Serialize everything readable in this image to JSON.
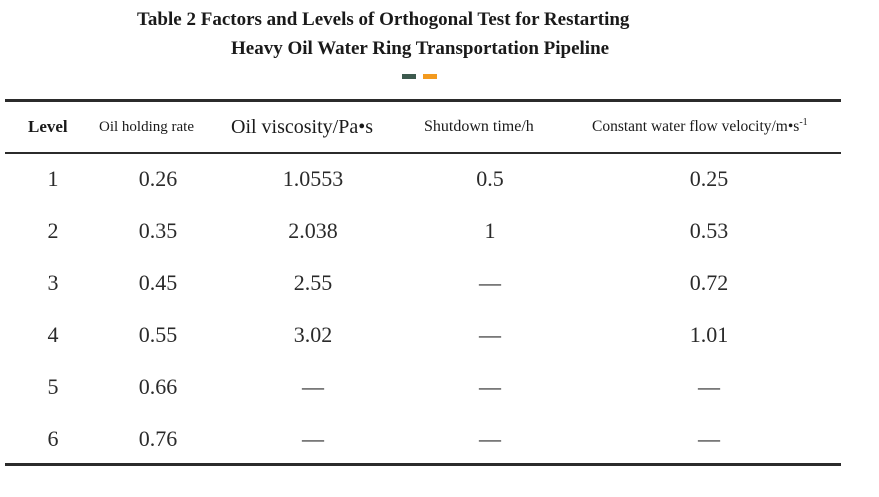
{
  "title": {
    "line1": "Table 2 Factors and Levels of Orthogonal Test for Restarting",
    "line2": "Heavy Oil Water Ring Transportation Pipeline"
  },
  "accent_colors": [
    "#3d5a4e",
    "#f39a1e"
  ],
  "columns": {
    "level": "Level",
    "oil_holding_rate": "Oil holding rate",
    "oil_viscosity": "Oil viscosity/Pa•s",
    "shutdown_time": "Shutdown time/h",
    "water_velocity": "Constant water flow velocity/m•s",
    "water_velocity_sup": "-1"
  },
  "rows": [
    {
      "level": "1",
      "oil_holding_rate": "0.26",
      "oil_viscosity": "1.0553",
      "shutdown_time": "0.5",
      "water_velocity": "0.25"
    },
    {
      "level": "2",
      "oil_holding_rate": "0.35",
      "oil_viscosity": "2.038",
      "shutdown_time": "1",
      "water_velocity": "0.53"
    },
    {
      "level": "3",
      "oil_holding_rate": "0.45",
      "oil_viscosity": "2.55",
      "shutdown_time": "—",
      "water_velocity": "0.72"
    },
    {
      "level": "4",
      "oil_holding_rate": "0.55",
      "oil_viscosity": "3.02",
      "shutdown_time": "—",
      "water_velocity": "1.01"
    },
    {
      "level": "5",
      "oil_holding_rate": "0.66",
      "oil_viscosity": "—",
      "shutdown_time": "—",
      "water_velocity": "—"
    },
    {
      "level": "6",
      "oil_holding_rate": "0.76",
      "oil_viscosity": "—",
      "shutdown_time": "—",
      "water_velocity": "—"
    }
  ]
}
